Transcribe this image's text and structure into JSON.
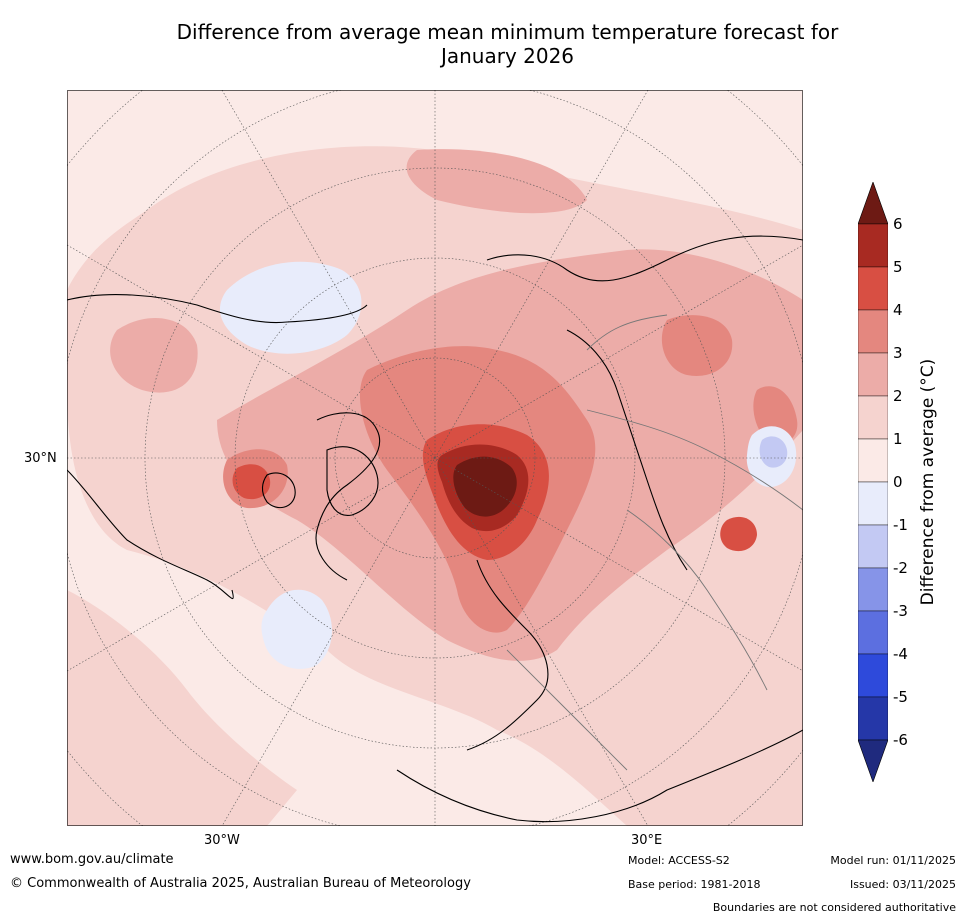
{
  "title_line1": "Difference from average mean minimum temperature forecast for",
  "title_line2": "January 2026",
  "map": {
    "lat_label": "30°N",
    "lon_labels": [
      "30°W",
      "30°E"
    ],
    "colors": {
      "ocean_bg": "#fbeae7",
      "level_0_1": "#fbeae7",
      "level_1_2": "#f5d3cf",
      "level_2_3": "#ecaca8",
      "level_3_4": "#e4877f",
      "level_4_5": "#d84f43",
      "level_5_6": "#a82a22",
      "level_6_plus": "#6d1a14",
      "neg_0_1": "#e8ecfb",
      "neg_1_2": "#c3c9f3"
    }
  },
  "colorbar": {
    "label": "Difference from average (°C)",
    "ticks": [
      "6",
      "5",
      "4",
      "3",
      "2",
      "1",
      "0",
      "-1",
      "-2",
      "-3",
      "-4",
      "-5",
      "-6"
    ],
    "colors": [
      "#6d1a14",
      "#a82a22",
      "#d84f43",
      "#e4877f",
      "#ecaca8",
      "#f5d3cf",
      "#fbeae7",
      "#e8ecfb",
      "#c3c9f3",
      "#8694e8",
      "#5c6fe0",
      "#2e4adb",
      "#2537a8",
      "#1f2a7e"
    ]
  },
  "footer": {
    "website": "www.bom.gov.au/climate",
    "copyright": "© Commonwealth of Australia 2025, Australian Bureau of Meteorology",
    "model": "Model: ACCESS-S2",
    "base_period": "Base period: 1981-2018",
    "model_run": "Model run: 01/11/2025",
    "issued": "Issued: 03/11/2025",
    "disclaimer": "Boundaries are not considered authoritative"
  }
}
